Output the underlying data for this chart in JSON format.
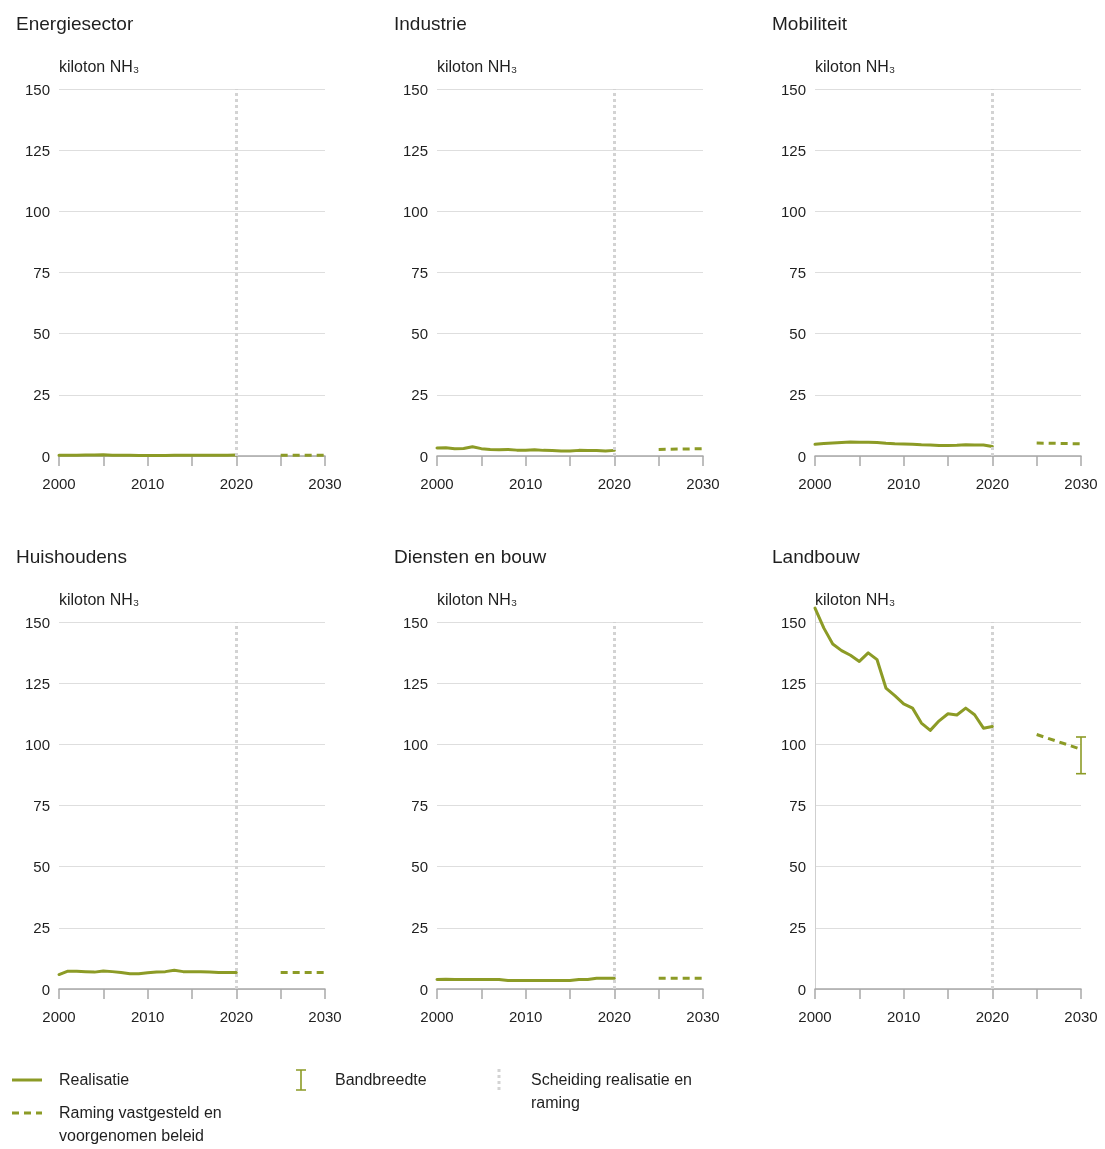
{
  "chart_data": [
    {
      "type": "line",
      "title": "Energiesector",
      "ylabel": "kiloton NH₃",
      "series": [
        {
          "x": [
            2000,
            2001,
            2002,
            2003,
            2004,
            2005,
            2006,
            2007,
            2008,
            2009,
            2010,
            2011,
            2012,
            2013,
            2014,
            2015,
            2016,
            2017,
            2018,
            2019,
            2020
          ],
          "values": [
            0.3,
            0.3,
            0.3,
            0.4,
            0.4,
            0.5,
            0.3,
            0.3,
            0.3,
            0.2,
            0.2,
            0.2,
            0.2,
            0.3,
            0.3,
            0.3,
            0.3,
            0.3,
            0.3,
            0.3,
            0.4
          ],
          "color": "#8c9b26",
          "line_style": "solid"
        },
        {
          "x": [
            2025,
            2030
          ],
          "values": [
            0.3,
            0.3
          ],
          "color": "#8c9b26",
          "line_style": "dashed"
        }
      ],
      "xlim": [
        2000,
        2030
      ],
      "xticks": [
        2000,
        {
          "value": 2005,
          "label": null
        },
        2010,
        {
          "value": 2015,
          "label": null
        },
        2020,
        {
          "value": 2025,
          "label": null
        },
        2030
      ],
      "ylim": [
        0,
        150
      ],
      "yticks": [
        0,
        25,
        50,
        75,
        100,
        125,
        150
      ],
      "grid": "y",
      "marker": "none",
      "ref_lines": [
        {
          "axis": "x",
          "value": 2020,
          "color": "#d3d3d3",
          "line_style": "dotted"
        }
      ]
    },
    {
      "type": "line",
      "title": "Industrie",
      "ylabel": "kiloton NH₃",
      "series": [
        {
          "x": [
            2000,
            2001,
            2002,
            2003,
            2004,
            2005,
            2006,
            2007,
            2008,
            2009,
            2010,
            2011,
            2012,
            2013,
            2014,
            2015,
            2016,
            2017,
            2018,
            2019,
            2020
          ],
          "values": [
            3.3,
            3.4,
            3.0,
            3.1,
            3.8,
            3.0,
            2.7,
            2.6,
            2.7,
            2.4,
            2.4,
            2.6,
            2.3,
            2.2,
            2.0,
            2.0,
            2.3,
            2.2,
            2.2,
            2.0,
            2.3
          ],
          "color": "#8c9b26",
          "line_style": "solid"
        },
        {
          "x": [
            2025,
            2030
          ],
          "values": [
            2.7,
            3.0
          ],
          "color": "#8c9b26",
          "line_style": "dashed"
        }
      ],
      "xlim": [
        2000,
        2030
      ],
      "xticks": [
        2000,
        {
          "value": 2005,
          "label": null
        },
        2010,
        {
          "value": 2015,
          "label": null
        },
        2020,
        {
          "value": 2025,
          "label": null
        },
        2030
      ],
      "ylim": [
        0,
        150
      ],
      "yticks": [
        0,
        25,
        50,
        75,
        100,
        125,
        150
      ],
      "grid": "y",
      "marker": "none",
      "ref_lines": [
        {
          "axis": "x",
          "value": 2020,
          "color": "#d3d3d3",
          "line_style": "dotted"
        }
      ]
    },
    {
      "type": "line",
      "title": "Mobiliteit",
      "ylabel": "kiloton NH₃",
      "series": [
        {
          "x": [
            2000,
            2001,
            2002,
            2003,
            2004,
            2005,
            2006,
            2007,
            2008,
            2009,
            2010,
            2011,
            2012,
            2013,
            2014,
            2015,
            2016,
            2017,
            2018,
            2019,
            2020
          ],
          "values": [
            4.8,
            5.1,
            5.3,
            5.5,
            5.7,
            5.6,
            5.6,
            5.5,
            5.2,
            5.0,
            4.9,
            4.8,
            4.6,
            4.5,
            4.3,
            4.3,
            4.4,
            4.6,
            4.5,
            4.5,
            3.9
          ],
          "color": "#8c9b26",
          "line_style": "solid"
        },
        {
          "x": [
            2025,
            2030
          ],
          "values": [
            5.3,
            5.0
          ],
          "color": "#8c9b26",
          "line_style": "dashed"
        }
      ],
      "xlim": [
        2000,
        2030
      ],
      "xticks": [
        2000,
        {
          "value": 2005,
          "label": null
        },
        2010,
        {
          "value": 2015,
          "label": null
        },
        2020,
        {
          "value": 2025,
          "label": null
        },
        2030
      ],
      "ylim": [
        0,
        150
      ],
      "yticks": [
        0,
        25,
        50,
        75,
        100,
        125,
        150
      ],
      "grid": "y",
      "marker": "none",
      "ref_lines": [
        {
          "axis": "x",
          "value": 2020,
          "color": "#d3d3d3",
          "line_style": "dotted"
        }
      ]
    },
    {
      "type": "line",
      "title": "Huishoudens",
      "ylabel": "kiloton NH₃",
      "series": [
        {
          "x": [
            2000,
            2001,
            2002,
            2003,
            2004,
            2005,
            2006,
            2007,
            2008,
            2009,
            2010,
            2011,
            2012,
            2013,
            2014,
            2015,
            2016,
            2017,
            2018,
            2019,
            2020
          ],
          "values": [
            5.9,
            7.3,
            7.3,
            7.1,
            6.9,
            7.4,
            7.1,
            6.7,
            6.2,
            6.2,
            6.6,
            6.9,
            7.1,
            7.7,
            7.1,
            7.1,
            7.1,
            6.9,
            6.7,
            6.7,
            6.7
          ],
          "color": "#8c9b26",
          "line_style": "solid"
        },
        {
          "x": [
            2025,
            2030
          ],
          "values": [
            6.7,
            6.7
          ],
          "color": "#8c9b26",
          "line_style": "dashed"
        }
      ],
      "xlim": [
        2000,
        2030
      ],
      "xticks": [
        2000,
        {
          "value": 2005,
          "label": null
        },
        2010,
        {
          "value": 2015,
          "label": null
        },
        2020,
        {
          "value": 2025,
          "label": null
        },
        2030
      ],
      "ylim": [
        0,
        150
      ],
      "yticks": [
        0,
        25,
        50,
        75,
        100,
        125,
        150
      ],
      "grid": "y",
      "marker": "none",
      "ref_lines": [
        {
          "axis": "x",
          "value": 2020,
          "color": "#d3d3d3",
          "line_style": "dotted"
        }
      ]
    },
    {
      "type": "line",
      "title": "Diensten en bouw",
      "ylabel": "kiloton NH₃",
      "series": [
        {
          "x": [
            2000,
            2001,
            2002,
            2003,
            2004,
            2005,
            2006,
            2007,
            2008,
            2009,
            2010,
            2011,
            2012,
            2013,
            2014,
            2015,
            2016,
            2017,
            2018,
            2019,
            2020
          ],
          "values": [
            3.9,
            4.0,
            3.9,
            3.9,
            3.9,
            3.9,
            3.9,
            3.9,
            3.5,
            3.5,
            3.5,
            3.5,
            3.5,
            3.5,
            3.5,
            3.5,
            3.9,
            3.9,
            4.4,
            4.4,
            4.4
          ],
          "color": "#8c9b26",
          "line_style": "solid"
        },
        {
          "x": [
            2025,
            2030
          ],
          "values": [
            4.4,
            4.4
          ],
          "color": "#8c9b26",
          "line_style": "dashed"
        }
      ],
      "xlim": [
        2000,
        2030
      ],
      "xticks": [
        2000,
        {
          "value": 2005,
          "label": null
        },
        2010,
        {
          "value": 2015,
          "label": null
        },
        2020,
        {
          "value": 2025,
          "label": null
        },
        2030
      ],
      "ylim": [
        0,
        150
      ],
      "yticks": [
        0,
        25,
        50,
        75,
        100,
        125,
        150
      ],
      "grid": "y",
      "marker": "none",
      "ref_lines": [
        {
          "axis": "x",
          "value": 2020,
          "color": "#d3d3d3",
          "line_style": "dotted"
        }
      ]
    },
    {
      "type": "line",
      "title": "Landbouw",
      "ylabel": "kiloton NH₃",
      "series": [
        {
          "name": "Realisatie",
          "x": [
            2000,
            2001,
            2002,
            2003,
            2004,
            2005,
            2006,
            2007,
            2008,
            2009,
            2010,
            2011,
            2012,
            2013,
            2014,
            2015,
            2016,
            2017,
            2018,
            2019,
            2020
          ],
          "values": [
            155.7,
            147.5,
            141,
            138.3,
            136.4,
            133.9,
            137.4,
            134.6,
            123,
            119.9,
            116.5,
            114.8,
            108.7,
            105.7,
            109.6,
            112.5,
            112,
            114.8,
            112.1,
            106.6,
            107.3
          ],
          "color": "#8c9b26",
          "line_style": "solid"
        },
        {
          "name": "Raming vastgesteld en voorgenomen beleid",
          "x": [
            2025,
            2030
          ],
          "values": [
            104,
            98
          ],
          "errors": [
            null,
            [
              88,
              103
            ]
          ],
          "color": "#8c9b26",
          "line_style": "dashed"
        }
      ],
      "xlim": [
        2000,
        2030
      ],
      "xticks": [
        2000,
        {
          "value": 2005,
          "label": null
        },
        2010,
        {
          "value": 2015,
          "label": null
        },
        2020,
        {
          "value": 2025,
          "label": null
        },
        2030
      ],
      "ylim": [
        0,
        156
      ],
      "yticks": [
        0,
        25,
        50,
        75,
        100,
        125,
        150
      ],
      "grid": "y",
      "marker": "none",
      "legend": "bottom",
      "annotations": [
        "Bandbreedte"
      ],
      "ref_lines": [
        {
          "axis": "x",
          "value": 2020,
          "color": "#d3d3d3",
          "line_style": "dotted",
          "label": "Scheiding realisatie en raming"
        }
      ]
    }
  ]
}
